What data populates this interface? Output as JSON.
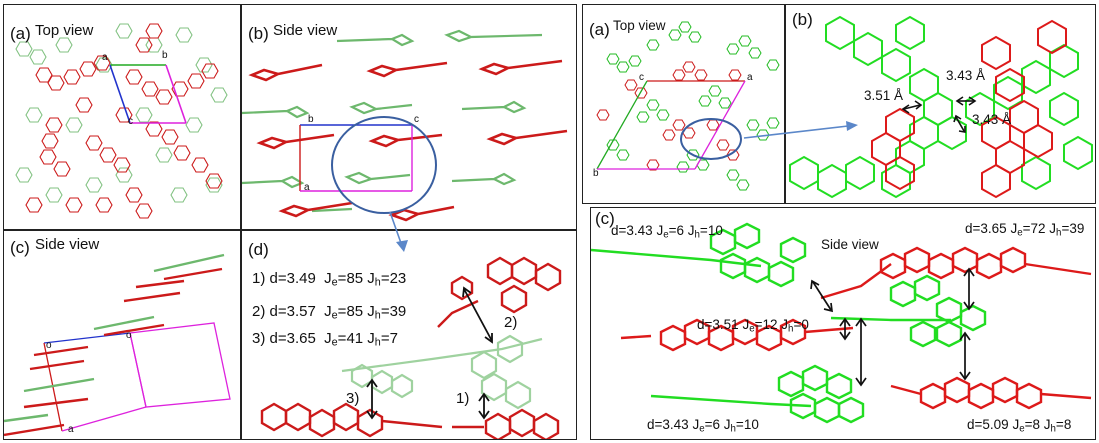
{
  "colors": {
    "red_molecule": "#cc1a1a",
    "green_molecule": "#5aa65a",
    "bright_green": "#22dd22",
    "cell_blue": "#2233cc",
    "cell_magenta": "#dd22dd",
    "highlight_circle": "#3a5fa0",
    "arrow_blue": "#5b87c9"
  },
  "left_figure": {
    "panel_a": {
      "label": "(a)",
      "title": "Top view",
      "cell": {
        "a": "a",
        "b": "b",
        "c": "c"
      }
    },
    "panel_b": {
      "label": "(b)",
      "title": "Side view",
      "cell": {
        "a": "a",
        "b": "b",
        "c": "c"
      }
    },
    "panel_c": {
      "label": "(c)",
      "title": "Side view",
      "cell": {
        "o1": "o",
        "o2": "o",
        "a": "a"
      }
    },
    "panel_d": {
      "label": "(d)",
      "pairs": [
        {
          "index": "1)",
          "d": "d=3.49",
          "je": "85",
          "jh": "23"
        },
        {
          "index": "2)",
          "d": "d=3.57",
          "je": "85",
          "jh": "39"
        },
        {
          "index": "3)",
          "d": "d=3.65",
          "je": "41",
          "jh": "7"
        }
      ],
      "arrow_labels": {
        "one": "1)",
        "two": "2)",
        "three": "3)"
      }
    }
  },
  "right_figure": {
    "panel_a": {
      "label": "(a)",
      "title": "Top view",
      "cell": {
        "a": "a",
        "b": "b",
        "c": "c"
      }
    },
    "panel_b": {
      "label": "(b)",
      "distances": {
        "left": "3.51 Å",
        "top": "3.43 Å",
        "right": "3.43 Å"
      }
    },
    "panel_c": {
      "label": "(c)",
      "title": "Side view",
      "top_left": {
        "d": "d=3.43",
        "je": "6",
        "jh": "10"
      },
      "top_right": {
        "d": "d=3.65",
        "je": "72",
        "jh": "39"
      },
      "middle": {
        "d": "d=3.51",
        "je": "12",
        "jh": "0"
      },
      "bottom_left": {
        "d": "d=3.43",
        "je": "6",
        "jh": "10"
      },
      "bottom_right": {
        "d": "d=5.09",
        "je": "8",
        "jh": "8"
      }
    }
  },
  "subscripts": {
    "e": "e",
    "h": "h",
    "je_prefix": "J",
    "jh_prefix": "J"
  }
}
